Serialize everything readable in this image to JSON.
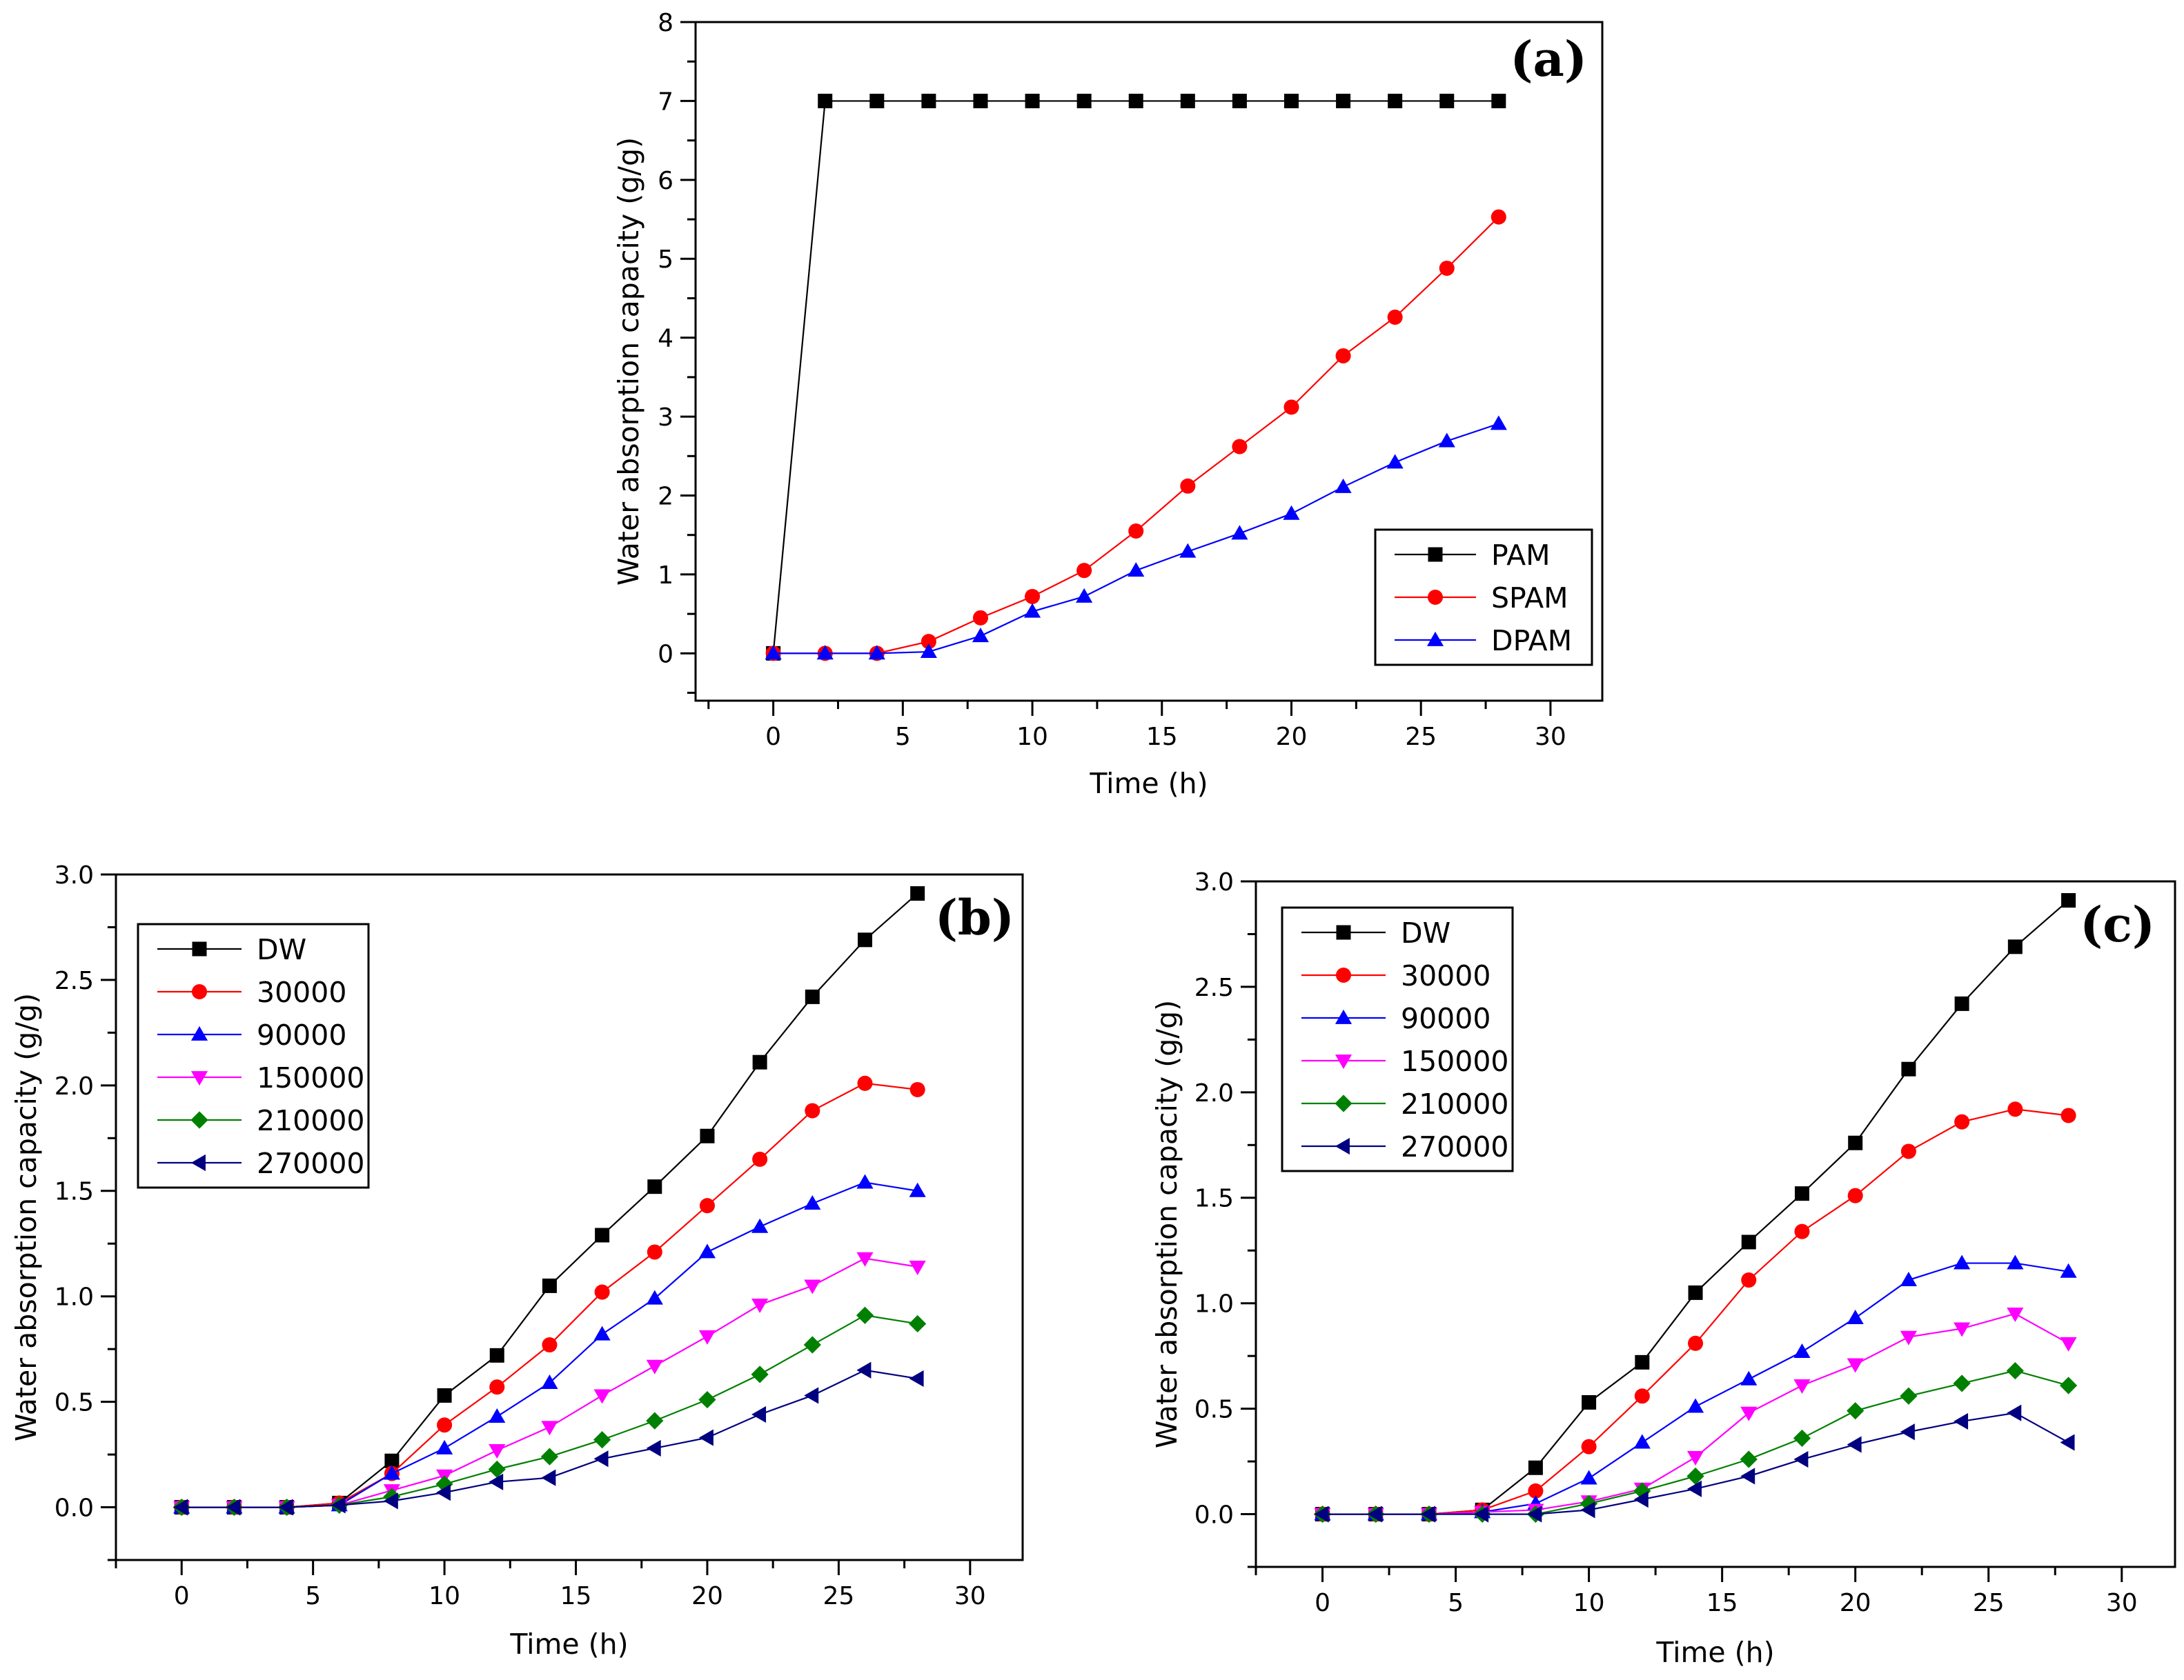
{
  "chart_data": [
    {
      "type": "line",
      "panel_label": "(a)",
      "xlabel": "Time (h)",
      "ylabel": "Water absorption capacity (g/g)",
      "xlim": [
        -3,
        32
      ],
      "ylim": [
        -0.6,
        8
      ],
      "xticks": [
        0,
        5,
        10,
        15,
        20,
        25,
        30
      ],
      "yticks": [
        0,
        1,
        2,
        3,
        4,
        5,
        6,
        7,
        8
      ],
      "ytick_labels": [
        "0",
        "1",
        "2",
        "3",
        "4",
        "5",
        "6",
        "7",
        "8"
      ],
      "legend_position": "bottom-right",
      "x": [
        0,
        2,
        4,
        6,
        8,
        10,
        12,
        14,
        16,
        18,
        20,
        22,
        24,
        26,
        28
      ],
      "series": [
        {
          "name": "PAM",
          "marker": "square",
          "color": "#000000",
          "values": [
            0,
            7,
            7,
            7,
            7,
            7,
            7,
            7,
            7,
            7,
            7,
            7,
            7,
            7,
            7
          ]
        },
        {
          "name": "SPAM",
          "marker": "circle",
          "color": "#ff0000",
          "values": [
            0,
            0,
            0,
            0.15,
            0.45,
            0.72,
            1.05,
            1.55,
            2.12,
            2.62,
            3.12,
            3.77,
            4.26,
            4.88,
            5.53
          ]
        },
        {
          "name": "DPAM",
          "marker": "triangle-up",
          "color": "#0000ff",
          "values": [
            0,
            0,
            0,
            0.02,
            0.22,
            0.53,
            0.72,
            1.05,
            1.29,
            1.52,
            1.77,
            2.11,
            2.42,
            2.69,
            2.91
          ]
        }
      ]
    },
    {
      "type": "line",
      "panel_label": "(b)",
      "xlabel": "Time (h)",
      "ylabel": "Water absorption capacity (g/g)",
      "xlim": [
        -2.5,
        32
      ],
      "ylim": [
        -0.25,
        3.0
      ],
      "xticks": [
        0,
        5,
        10,
        15,
        20,
        25,
        30
      ],
      "yticks": [
        0,
        0.5,
        1.0,
        1.5,
        2.0,
        2.5,
        3.0
      ],
      "ytick_labels": [
        "0.0",
        "0.5",
        "1.0",
        "1.5",
        "2.0",
        "2.5",
        "3.0"
      ],
      "legend_position": "top-left",
      "x": [
        0,
        2,
        4,
        6,
        8,
        10,
        12,
        14,
        16,
        18,
        20,
        22,
        24,
        26,
        28
      ],
      "series": [
        {
          "name": "DW",
          "marker": "square",
          "color": "#000000",
          "values": [
            0,
            0,
            0,
            0.02,
            0.22,
            0.53,
            0.72,
            1.05,
            1.29,
            1.52,
            1.76,
            2.11,
            2.42,
            2.69,
            2.91
          ]
        },
        {
          "name": "30000",
          "marker": "circle",
          "color": "#ff0000",
          "values": [
            0,
            0,
            0,
            0.02,
            0.16,
            0.39,
            0.57,
            0.77,
            1.02,
            1.21,
            1.43,
            1.65,
            1.88,
            2.01,
            1.98
          ]
        },
        {
          "name": "90000",
          "marker": "triangle-up",
          "color": "#0000ff",
          "values": [
            0,
            0,
            0,
            0.01,
            0.16,
            0.28,
            0.43,
            0.59,
            0.82,
            0.99,
            1.21,
            1.33,
            1.44,
            1.54,
            1.5
          ]
        },
        {
          "name": "150000",
          "marker": "triangle-down",
          "color": "#ff00ff",
          "values": [
            0,
            0,
            0,
            0.01,
            0.08,
            0.15,
            0.27,
            0.38,
            0.53,
            0.67,
            0.81,
            0.96,
            1.05,
            1.18,
            1.14
          ]
        },
        {
          "name": "210000",
          "marker": "diamond",
          "color": "#008000",
          "values": [
            0,
            0,
            0,
            0.01,
            0.05,
            0.11,
            0.18,
            0.24,
            0.32,
            0.41,
            0.51,
            0.63,
            0.77,
            0.91,
            0.87
          ]
        },
        {
          "name": "270000",
          "marker": "triangle-left",
          "color": "#000080",
          "values": [
            0,
            0,
            0,
            0.01,
            0.03,
            0.07,
            0.12,
            0.14,
            0.23,
            0.28,
            0.33,
            0.44,
            0.53,
            0.65,
            0.61
          ]
        }
      ]
    },
    {
      "type": "line",
      "panel_label": "(c)",
      "xlabel": "Time (h)",
      "ylabel": "Water absorption capacity (g/g)",
      "xlim": [
        -2.5,
        32
      ],
      "ylim": [
        -0.25,
        3.0
      ],
      "xticks": [
        0,
        5,
        10,
        15,
        20,
        25,
        30
      ],
      "yticks": [
        0,
        0.5,
        1.0,
        1.5,
        2.0,
        2.5,
        3.0
      ],
      "ytick_labels": [
        "0.0",
        "0.5",
        "1.0",
        "1.5",
        "2.0",
        "2.5",
        "3.0"
      ],
      "legend_position": "top-left",
      "x": [
        0,
        2,
        4,
        6,
        8,
        10,
        12,
        14,
        16,
        18,
        20,
        22,
        24,
        26,
        28
      ],
      "series": [
        {
          "name": "DW",
          "marker": "square",
          "color": "#000000",
          "values": [
            0,
            0,
            0,
            0.02,
            0.22,
            0.53,
            0.72,
            1.05,
            1.29,
            1.52,
            1.76,
            2.11,
            2.42,
            2.69,
            2.91
          ]
        },
        {
          "name": "30000",
          "marker": "circle",
          "color": "#ff0000",
          "values": [
            0,
            0,
            0,
            0.02,
            0.11,
            0.32,
            0.56,
            0.81,
            1.11,
            1.34,
            1.51,
            1.72,
            1.86,
            1.92,
            1.89
          ]
        },
        {
          "name": "90000",
          "marker": "triangle-up",
          "color": "#0000ff",
          "values": [
            0,
            0,
            0,
            0.01,
            0.05,
            0.17,
            0.34,
            0.51,
            0.64,
            0.77,
            0.93,
            1.11,
            1.19,
            1.19,
            1.15
          ]
        },
        {
          "name": "150000",
          "marker": "triangle-down",
          "color": "#ff00ff",
          "values": [
            0,
            0,
            0,
            0.01,
            0.02,
            0.06,
            0.12,
            0.27,
            0.48,
            0.61,
            0.71,
            0.84,
            0.88,
            0.95,
            0.81
          ]
        },
        {
          "name": "210000",
          "marker": "diamond",
          "color": "#008000",
          "values": [
            0,
            0,
            0,
            0,
            0,
            0.05,
            0.11,
            0.18,
            0.26,
            0.36,
            0.49,
            0.56,
            0.62,
            0.68,
            0.61
          ]
        },
        {
          "name": "270000",
          "marker": "triangle-left",
          "color": "#000080",
          "values": [
            0,
            0,
            0,
            0,
            0,
            0.02,
            0.07,
            0.12,
            0.18,
            0.26,
            0.33,
            0.39,
            0.44,
            0.48,
            0.34
          ]
        }
      ]
    }
  ]
}
